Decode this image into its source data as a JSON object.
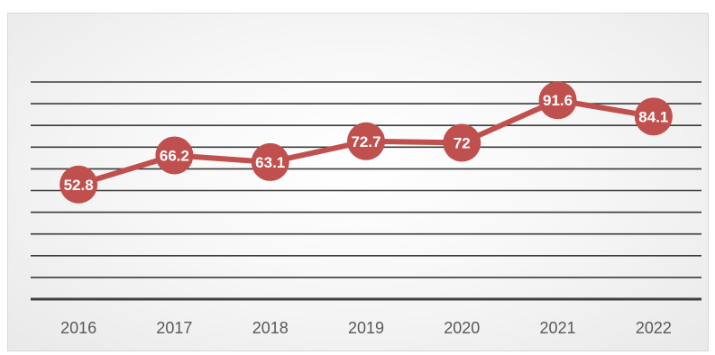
{
  "chart_data": {
    "type": "line",
    "categories": [
      "2016",
      "2017",
      "2018",
      "2019",
      "2020",
      "2021",
      "2022"
    ],
    "series": [
      {
        "values": [
          52.8,
          66.2,
          63.1,
          72.7,
          72,
          91.6,
          84.1
        ],
        "labels": [
          "52.8",
          "66.2",
          "63.1",
          "72.7",
          "72",
          "91.6",
          "84.1"
        ],
        "color": "#c0504d"
      }
    ],
    "ylim": [
      0,
      100
    ],
    "gridlines": 10,
    "grid": true,
    "legend": "none",
    "colors": {
      "gridline": "#3a3a3a",
      "axis": "#404040",
      "tick_text": "#595959",
      "label_text": "#ffffff"
    }
  }
}
